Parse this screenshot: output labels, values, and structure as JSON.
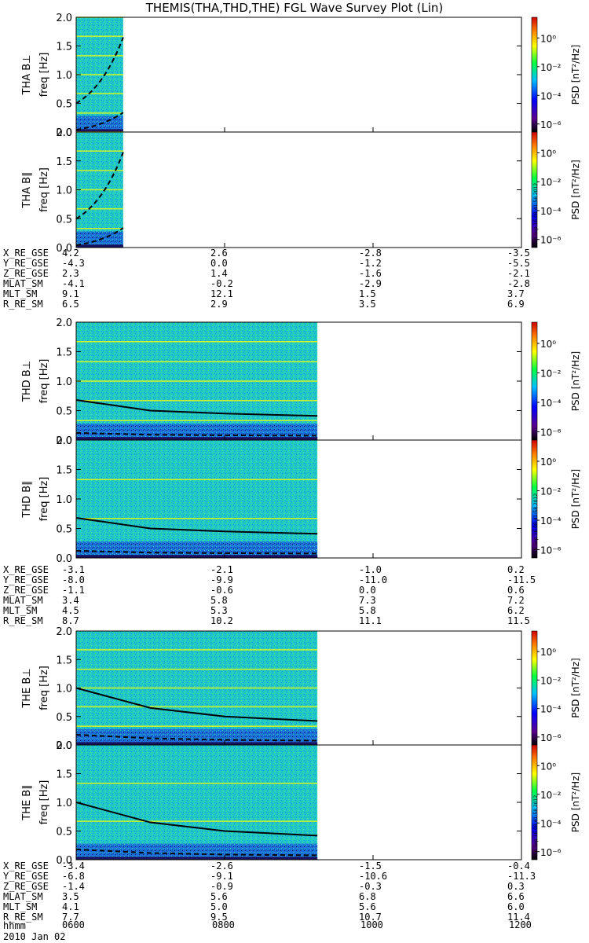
{
  "title": "THEMIS(THA,THD,THE) FGL Wave Survey Plot (Lin)",
  "colorbar_label": "PSD [nT²/Hz]",
  "colorbar_ticks": [
    "10⁰",
    "10⁻²",
    "10⁻⁴",
    "10⁻⁶"
  ],
  "timestamp_stamp": "Sun Sep 16 08:41:58 2012",
  "time_axis": {
    "label": "hhmm",
    "date": "2010 Jan 02",
    "ticks": [
      "0600",
      "0800",
      "1000",
      "1200"
    ]
  },
  "ephem_labels": [
    "X_RE_GSE",
    "Y_RE_GSE",
    "Z_RE_GSE",
    "MLAT_SM",
    "MLT_SM",
    "R_RE_SM"
  ],
  "colors": {
    "orange_line": "#ffff00",
    "spectrogram_base": "#1fc8c0"
  },
  "chart_data": [
    {
      "type": "heatmap",
      "probe": "THA",
      "panels": [
        {
          "ylabel": "THA B⊥",
          "unit": "freq [Hz]",
          "data_end_time": "0638",
          "ylim": [
            0,
            2.0
          ],
          "yticks": [
            "0.0",
            "0.5",
            "1.0",
            "1.5",
            "2.0"
          ],
          "bright_lines_hz": [
            0.33,
            0.67,
            1.0,
            1.33,
            1.67,
            2.0
          ],
          "curve_dashed_upper": {
            "times": [
              "0600",
              "0638"
            ],
            "freq": [
              0.5,
              1.65
            ]
          },
          "curve_dashed_lower": {
            "times": [
              "0600",
              "0638"
            ],
            "freq": [
              0.04,
              0.34
            ]
          }
        },
        {
          "ylabel": "THA B∥",
          "unit": "freq [Hz]",
          "data_end_time": "0638",
          "ylim": [
            0,
            2.0
          ],
          "yticks": [
            "0.0",
            "0.5",
            "1.0",
            "1.5",
            "2.0"
          ],
          "bright_lines_hz": [
            0.33,
            0.67,
            1.0,
            1.33,
            1.67,
            2.0
          ],
          "curve_dashed_upper": {
            "times": [
              "0600",
              "0638"
            ],
            "freq": [
              0.5,
              1.65
            ]
          },
          "curve_dashed_lower": {
            "times": [
              "0600",
              "0638"
            ],
            "freq": [
              0.04,
              0.34
            ]
          }
        }
      ],
      "ephemeris": [
        [
          "4.2",
          "2.6",
          "-2.8",
          "-3.5"
        ],
        [
          "-4.3",
          "0.0",
          "-1.2",
          "-5.5"
        ],
        [
          "2.3",
          "1.4",
          "-1.6",
          "-2.1"
        ],
        [
          "-4.1",
          "-0.2",
          "-2.9",
          "-2.8"
        ],
        [
          "9.1",
          "12.1",
          "1.5",
          "3.7"
        ],
        [
          "6.5",
          "2.9",
          "3.5",
          "6.9"
        ]
      ]
    },
    {
      "type": "heatmap",
      "probe": "THD",
      "panels": [
        {
          "ylabel": "THD B⊥",
          "unit": "freq [Hz]",
          "data_end_time": "0915",
          "ylim": [
            0,
            2.0
          ],
          "yticks": [
            "0.0",
            "0.5",
            "1.0",
            "1.5",
            "2.0"
          ],
          "bright_lines_hz": [
            0.33,
            0.67,
            1.0,
            1.33,
            1.67
          ],
          "curve_solid": {
            "times": [
              "0600",
              "0700",
              "0800",
              "0915"
            ],
            "freq": [
              0.68,
              0.5,
              0.45,
              0.41
            ]
          }
        },
        {
          "ylabel": "THD B∥",
          "unit": "freq [Hz]",
          "data_end_time": "0915",
          "ylim": [
            0,
            2.0
          ],
          "yticks": [
            "0.0",
            "0.5",
            "1.0",
            "1.5",
            "2.0"
          ],
          "bright_lines_hz": [
            0.67,
            1.33
          ],
          "curve_solid": {
            "times": [
              "0600",
              "0700",
              "0800",
              "0915"
            ],
            "freq": [
              0.68,
              0.5,
              0.45,
              0.41
            ]
          }
        }
      ],
      "ephemeris": [
        [
          "-3.1",
          "-2.1",
          "-1.0",
          "0.2"
        ],
        [
          "-8.0",
          "-9.9",
          "-11.0",
          "-11.5"
        ],
        [
          "-1.1",
          "-0.6",
          "0.0",
          "0.6"
        ],
        [
          "3.4",
          "5.8",
          "7.3",
          "7.2"
        ],
        [
          "4.5",
          "5.3",
          "5.8",
          "6.2"
        ],
        [
          "8.7",
          "10.2",
          "11.1",
          "11.5"
        ]
      ]
    },
    {
      "type": "heatmap",
      "probe": "THE",
      "panels": [
        {
          "ylabel": "THE B⊥",
          "unit": "freq [Hz]",
          "data_end_time": "0915",
          "ylim": [
            0,
            2.0
          ],
          "yticks": [
            "0.0",
            "0.5",
            "1.0",
            "1.5",
            "2.0"
          ],
          "bright_lines_hz": [
            0.33,
            0.67,
            1.0,
            1.33,
            1.67
          ],
          "curve_solid": {
            "times": [
              "0600",
              "0700",
              "0800",
              "0915"
            ],
            "freq": [
              1.0,
              0.65,
              0.5,
              0.42
            ]
          }
        },
        {
          "ylabel": "THE B∥",
          "unit": "freq [Hz]",
          "data_end_time": "0915",
          "ylim": [
            0,
            2.0
          ],
          "yticks": [
            "0.0",
            "0.5",
            "1.0",
            "1.5",
            "2.0"
          ],
          "bright_lines_hz": [
            0.67,
            1.33
          ],
          "curve_solid": {
            "times": [
              "0600",
              "0700",
              "0800",
              "0915"
            ],
            "freq": [
              1.0,
              0.65,
              0.5,
              0.42
            ]
          }
        }
      ],
      "ephemeris": [
        [
          "-3.4",
          "-2.6",
          "-1.5",
          "-0.4"
        ],
        [
          "-6.8",
          "-9.1",
          "-10.6",
          "-11.3"
        ],
        [
          "-1.4",
          "-0.9",
          "-0.3",
          "0.3"
        ],
        [
          "3.5",
          "5.6",
          "6.8",
          "6.6"
        ],
        [
          "4.1",
          "5.0",
          "5.6",
          "6.0"
        ],
        [
          "7.7",
          "9.5",
          "10.7",
          "11.4"
        ]
      ]
    }
  ]
}
